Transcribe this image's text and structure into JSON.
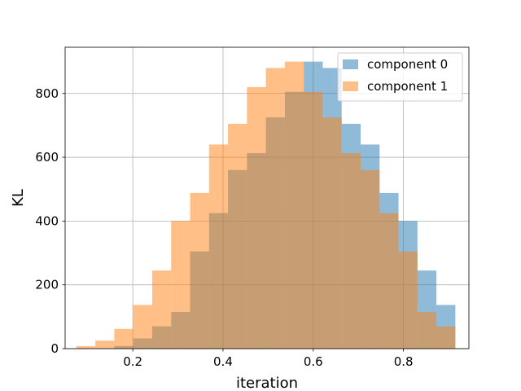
{
  "chart_data": {
    "type": "bar",
    "title": "",
    "xlabel": "iteration",
    "ylabel": "KL",
    "xlim": [
      0.05,
      0.945
    ],
    "ylim": [
      0,
      945
    ],
    "xticks": [
      0.2,
      0.4,
      0.6,
      0.8
    ],
    "yticks": [
      0,
      200,
      400,
      600,
      800
    ],
    "grid": true,
    "legend_position": "top-right",
    "series": [
      {
        "name": "component 0",
        "color": "#1f77b4",
        "opacity": 0.5,
        "bins": [
          {
            "x0": 0.075,
            "x1": 0.117,
            "value": 0
          },
          {
            "x0": 0.117,
            "x1": 0.159,
            "value": 0
          },
          {
            "x0": 0.159,
            "x1": 0.201,
            "value": 8
          },
          {
            "x0": 0.201,
            "x1": 0.243,
            "value": 32
          },
          {
            "x0": 0.243,
            "x1": 0.285,
            "value": 70
          },
          {
            "x0": 0.285,
            "x1": 0.327,
            "value": 115
          },
          {
            "x0": 0.327,
            "x1": 0.369,
            "value": 305
          },
          {
            "x0": 0.369,
            "x1": 0.411,
            "value": 425
          },
          {
            "x0": 0.411,
            "x1": 0.453,
            "value": 560
          },
          {
            "x0": 0.453,
            "x1": 0.495,
            "value": 613
          },
          {
            "x0": 0.495,
            "x1": 0.537,
            "value": 725
          },
          {
            "x0": 0.537,
            "x1": 0.579,
            "value": 805
          },
          {
            "x0": 0.579,
            "x1": 0.621,
            "value": 900
          },
          {
            "x0": 0.621,
            "x1": 0.663,
            "value": 880
          },
          {
            "x0": 0.663,
            "x1": 0.705,
            "value": 705
          },
          {
            "x0": 0.705,
            "x1": 0.747,
            "value": 640
          },
          {
            "x0": 0.747,
            "x1": 0.789,
            "value": 488
          },
          {
            "x0": 0.789,
            "x1": 0.831,
            "value": 400
          },
          {
            "x0": 0.831,
            "x1": 0.873,
            "value": 245
          },
          {
            "x0": 0.873,
            "x1": 0.915,
            "value": 137
          }
        ]
      },
      {
        "name": "component 1",
        "color": "#ff7f0e",
        "opacity": 0.5,
        "bins": [
          {
            "x0": 0.075,
            "x1": 0.117,
            "value": 8
          },
          {
            "x0": 0.117,
            "x1": 0.159,
            "value": 25
          },
          {
            "x0": 0.159,
            "x1": 0.201,
            "value": 62
          },
          {
            "x0": 0.201,
            "x1": 0.243,
            "value": 137
          },
          {
            "x0": 0.243,
            "x1": 0.285,
            "value": 245
          },
          {
            "x0": 0.285,
            "x1": 0.327,
            "value": 400
          },
          {
            "x0": 0.327,
            "x1": 0.369,
            "value": 488
          },
          {
            "x0": 0.369,
            "x1": 0.411,
            "value": 640
          },
          {
            "x0": 0.411,
            "x1": 0.453,
            "value": 705
          },
          {
            "x0": 0.453,
            "x1": 0.495,
            "value": 820
          },
          {
            "x0": 0.495,
            "x1": 0.537,
            "value": 880
          },
          {
            "x0": 0.537,
            "x1": 0.579,
            "value": 900
          },
          {
            "x0": 0.579,
            "x1": 0.621,
            "value": 805
          },
          {
            "x0": 0.621,
            "x1": 0.663,
            "value": 725
          },
          {
            "x0": 0.663,
            "x1": 0.705,
            "value": 613
          },
          {
            "x0": 0.705,
            "x1": 0.747,
            "value": 560
          },
          {
            "x0": 0.747,
            "x1": 0.789,
            "value": 425
          },
          {
            "x0": 0.789,
            "x1": 0.831,
            "value": 305
          },
          {
            "x0": 0.831,
            "x1": 0.873,
            "value": 115
          },
          {
            "x0": 0.873,
            "x1": 0.915,
            "value": 70
          }
        ]
      }
    ]
  }
}
